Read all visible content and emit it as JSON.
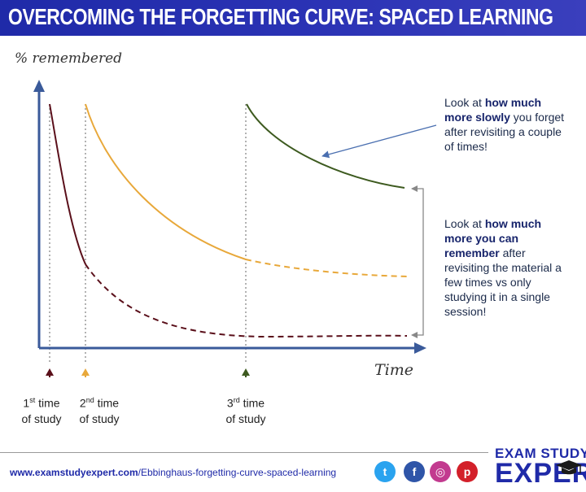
{
  "header": {
    "title": "OVERCOMING THE FORGETTING CURVE: SPACED LEARNING",
    "bg_color": "#2b33b5"
  },
  "diagram": {
    "ylabel": "% remembered",
    "xlabel": "Time",
    "colors": {
      "axis": "#3a5a9a",
      "session1": "#5a0f1a",
      "session2": "#e8a83a",
      "session3": "#3d5a1f",
      "pointer": "#4a6fb0",
      "bracket": "#888888"
    },
    "annotation_top": {
      "pre": "Look at ",
      "bold": "how much more slowly",
      "post": " you forget after revisiting a couple of times!"
    },
    "annotation_bottom": {
      "pre": "Look at ",
      "bold": "how much more you can remember",
      "post": " after revisiting the material a few times vs only studying it in a single session!"
    },
    "study_markers": [
      {
        "ord": "1",
        "sup": "st",
        "line1": " time",
        "line2": "of study"
      },
      {
        "ord": "2",
        "sup": "nd",
        "line1": " time",
        "line2": "of study"
      },
      {
        "ord": "3",
        "sup": "rd",
        "line1": " time",
        "line2": "of study"
      }
    ]
  },
  "footer": {
    "url_bold": "www.examstudyexpert.com",
    "url_rest": "/Ebbinghaus-forgetting-curve-spaced-learning",
    "social": [
      {
        "name": "twitter",
        "glyph": "t",
        "color": "#2aa3ef"
      },
      {
        "name": "facebook",
        "glyph": "f",
        "color": "#2f55a8"
      },
      {
        "name": "instagram",
        "glyph": "◎",
        "color": "#c23a8f"
      },
      {
        "name": "pinterest",
        "glyph": "p",
        "color": "#d3202a"
      }
    ],
    "logo_top": "EXAM STUDY",
    "logo_bottom": "EXPERT"
  }
}
